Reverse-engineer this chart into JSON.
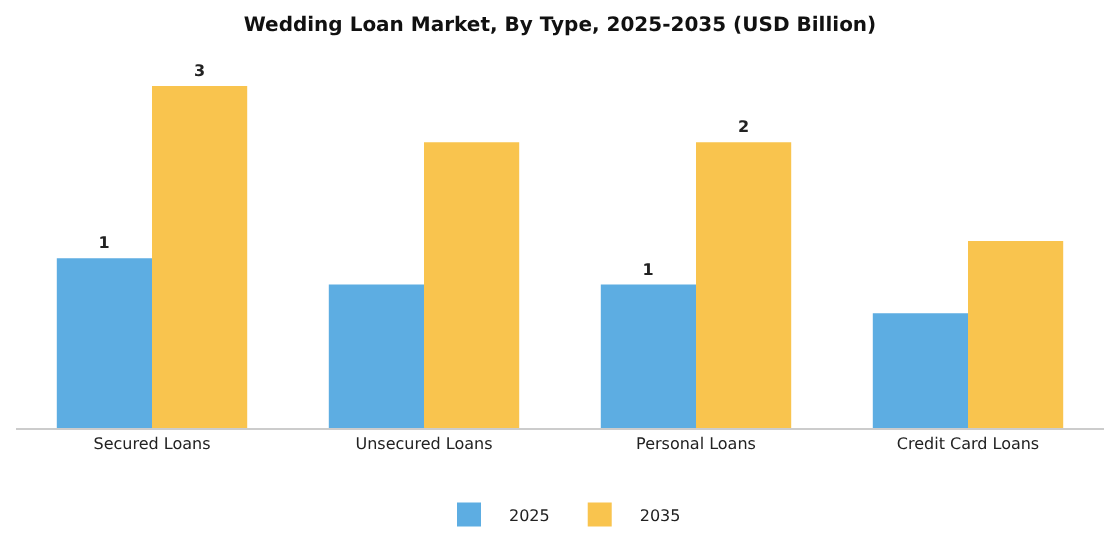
{
  "chart_data": {
    "type": "bar",
    "title": "Wedding Loan Market, By Type, 2025-2035 (USD Billion)",
    "tick_labels": "x",
    "categories": [
      "Secured Loans",
      "Unsecured Loans",
      "Personal Loans",
      "Credit Card Loans"
    ],
    "series": [
      {
        "name": "2025",
        "color": "#5dade2",
        "values": [
          1.48,
          1.25,
          1.25,
          1.0
        ],
        "value_labels": [
          "1",
          null,
          "1",
          null
        ]
      },
      {
        "name": "2035",
        "color": "#f9c44e",
        "values": [
          2.98,
          2.49,
          2.49,
          1.63
        ],
        "value_labels": [
          "3",
          null,
          "2",
          null
        ]
      }
    ],
    "legend": "bottom",
    "grid": false
  }
}
